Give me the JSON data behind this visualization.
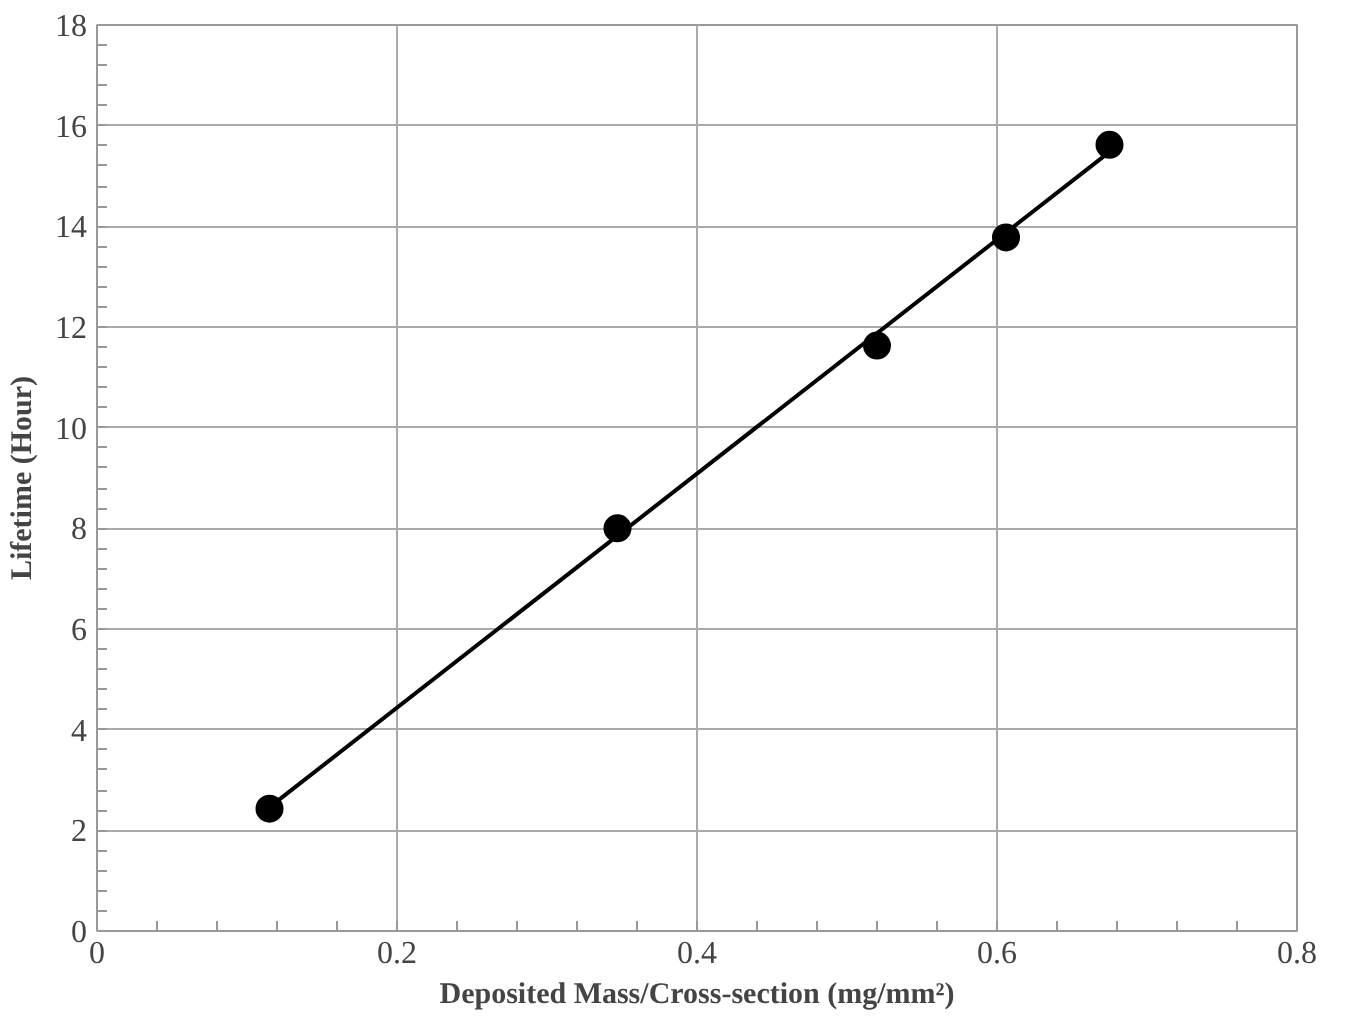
{
  "chart_data": {
    "type": "scatter",
    "xlabel": "Deposited Mass/Cross-section (mg/mm²)",
    "ylabel": "Lifetime (Hour)",
    "xlim": [
      0,
      0.8
    ],
    "xticks": [
      0,
      0.2,
      0.4,
      0.6,
      0.8
    ],
    "ylim": [
      0,
      18
    ],
    "yticks": [
      0,
      2,
      4,
      6,
      8,
      10,
      12,
      14,
      16,
      18
    ],
    "grid": true,
    "series": [
      {
        "type": "line",
        "color": "#000000",
        "x": [
          0.115,
          0.675
        ],
        "values": [
          2.46,
          15.48
        ],
        "line_style": "solid"
      },
      {
        "color": "#000000",
        "x": [
          0.115,
          0.347,
          0.52,
          0.606,
          0.675
        ],
        "values": [
          2.43,
          8.0,
          11.63,
          13.78,
          15.62
        ],
        "marker": "circle"
      }
    ]
  }
}
